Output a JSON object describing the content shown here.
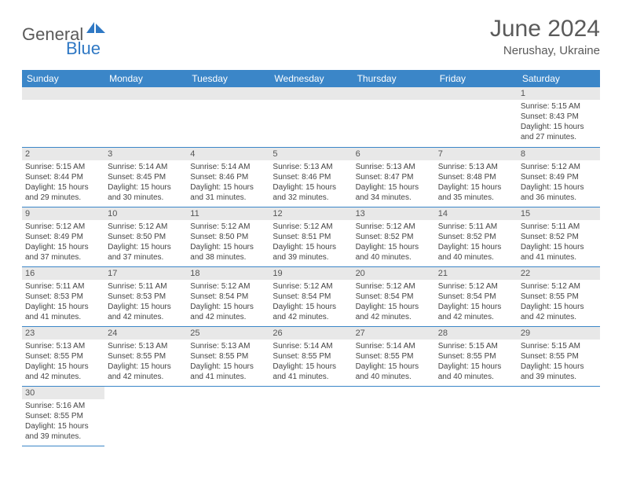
{
  "brand": {
    "name_a": "General",
    "name_b": "Blue"
  },
  "title": "June 2024",
  "location": "Nerushay, Ukraine",
  "colors": {
    "header_bg": "#3b86c8",
    "header_text": "#ffffff",
    "daynum_bg": "#e8e8e8",
    "border": "#3b86c8",
    "brand_gray": "#5a5a5a",
    "brand_blue": "#2f78c4"
  },
  "day_headers": [
    "Sunday",
    "Monday",
    "Tuesday",
    "Wednesday",
    "Thursday",
    "Friday",
    "Saturday"
  ],
  "weeks": [
    [
      null,
      null,
      null,
      null,
      null,
      null,
      {
        "n": "1",
        "sr": "5:15 AM",
        "ss": "8:43 PM",
        "dl": "15 hours and 27 minutes."
      }
    ],
    [
      {
        "n": "2",
        "sr": "5:15 AM",
        "ss": "8:44 PM",
        "dl": "15 hours and 29 minutes."
      },
      {
        "n": "3",
        "sr": "5:14 AM",
        "ss": "8:45 PM",
        "dl": "15 hours and 30 minutes."
      },
      {
        "n": "4",
        "sr": "5:14 AM",
        "ss": "8:46 PM",
        "dl": "15 hours and 31 minutes."
      },
      {
        "n": "5",
        "sr": "5:13 AM",
        "ss": "8:46 PM",
        "dl": "15 hours and 32 minutes."
      },
      {
        "n": "6",
        "sr": "5:13 AM",
        "ss": "8:47 PM",
        "dl": "15 hours and 34 minutes."
      },
      {
        "n": "7",
        "sr": "5:13 AM",
        "ss": "8:48 PM",
        "dl": "15 hours and 35 minutes."
      },
      {
        "n": "8",
        "sr": "5:12 AM",
        "ss": "8:49 PM",
        "dl": "15 hours and 36 minutes."
      }
    ],
    [
      {
        "n": "9",
        "sr": "5:12 AM",
        "ss": "8:49 PM",
        "dl": "15 hours and 37 minutes."
      },
      {
        "n": "10",
        "sr": "5:12 AM",
        "ss": "8:50 PM",
        "dl": "15 hours and 37 minutes."
      },
      {
        "n": "11",
        "sr": "5:12 AM",
        "ss": "8:50 PM",
        "dl": "15 hours and 38 minutes."
      },
      {
        "n": "12",
        "sr": "5:12 AM",
        "ss": "8:51 PM",
        "dl": "15 hours and 39 minutes."
      },
      {
        "n": "13",
        "sr": "5:12 AM",
        "ss": "8:52 PM",
        "dl": "15 hours and 40 minutes."
      },
      {
        "n": "14",
        "sr": "5:11 AM",
        "ss": "8:52 PM",
        "dl": "15 hours and 40 minutes."
      },
      {
        "n": "15",
        "sr": "5:11 AM",
        "ss": "8:52 PM",
        "dl": "15 hours and 41 minutes."
      }
    ],
    [
      {
        "n": "16",
        "sr": "5:11 AM",
        "ss": "8:53 PM",
        "dl": "15 hours and 41 minutes."
      },
      {
        "n": "17",
        "sr": "5:11 AM",
        "ss": "8:53 PM",
        "dl": "15 hours and 42 minutes."
      },
      {
        "n": "18",
        "sr": "5:12 AM",
        "ss": "8:54 PM",
        "dl": "15 hours and 42 minutes."
      },
      {
        "n": "19",
        "sr": "5:12 AM",
        "ss": "8:54 PM",
        "dl": "15 hours and 42 minutes."
      },
      {
        "n": "20",
        "sr": "5:12 AM",
        "ss": "8:54 PM",
        "dl": "15 hours and 42 minutes."
      },
      {
        "n": "21",
        "sr": "5:12 AM",
        "ss": "8:54 PM",
        "dl": "15 hours and 42 minutes."
      },
      {
        "n": "22",
        "sr": "5:12 AM",
        "ss": "8:55 PM",
        "dl": "15 hours and 42 minutes."
      }
    ],
    [
      {
        "n": "23",
        "sr": "5:13 AM",
        "ss": "8:55 PM",
        "dl": "15 hours and 42 minutes."
      },
      {
        "n": "24",
        "sr": "5:13 AM",
        "ss": "8:55 PM",
        "dl": "15 hours and 42 minutes."
      },
      {
        "n": "25",
        "sr": "5:13 AM",
        "ss": "8:55 PM",
        "dl": "15 hours and 41 minutes."
      },
      {
        "n": "26",
        "sr": "5:14 AM",
        "ss": "8:55 PM",
        "dl": "15 hours and 41 minutes."
      },
      {
        "n": "27",
        "sr": "5:14 AM",
        "ss": "8:55 PM",
        "dl": "15 hours and 40 minutes."
      },
      {
        "n": "28",
        "sr": "5:15 AM",
        "ss": "8:55 PM",
        "dl": "15 hours and 40 minutes."
      },
      {
        "n": "29",
        "sr": "5:15 AM",
        "ss": "8:55 PM",
        "dl": "15 hours and 39 minutes."
      }
    ],
    [
      {
        "n": "30",
        "sr": "5:16 AM",
        "ss": "8:55 PM",
        "dl": "15 hours and 39 minutes."
      },
      null,
      null,
      null,
      null,
      null,
      null
    ]
  ],
  "labels": {
    "sunrise": "Sunrise:",
    "sunset": "Sunset:",
    "daylight": "Daylight:"
  }
}
